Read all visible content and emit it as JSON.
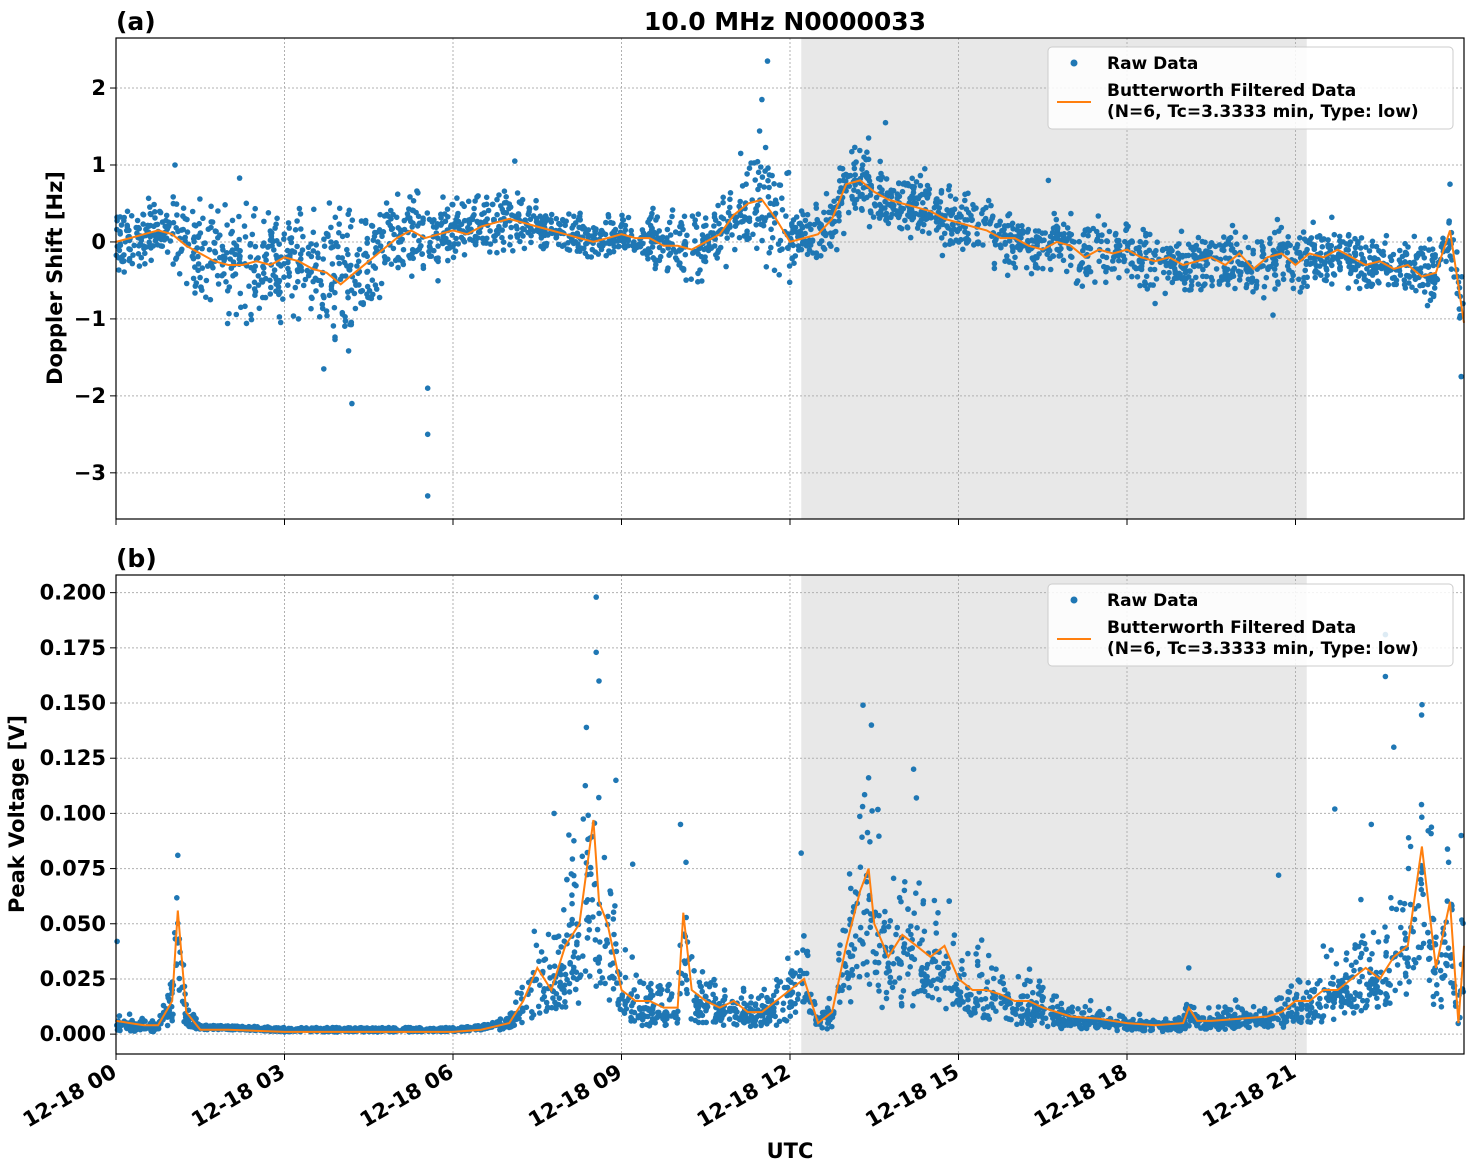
{
  "title": "10.0 MHz N0000033",
  "xlabel": "UTC",
  "x_ticks": [
    "12-18 00",
    "12-18 03",
    "12-18 06",
    "12-18 09",
    "12-18 12",
    "12-18 15",
    "12-18 18",
    "12-18 21"
  ],
  "legend": {
    "raw": "Raw Data",
    "filtered_line1": "Butterworth Filtered Data",
    "filtered_line2": "(N=6, Tc=3.3333 min, Type: low)"
  },
  "colors": {
    "raw": "#1f77b4",
    "filtered": "#ff7f0e",
    "shade": "#e8e8e8",
    "grid": "#b0b0b0"
  },
  "chart_data": [
    {
      "panel": "(a)",
      "type": "scatter",
      "title": "10.0 MHz N0000033",
      "ylabel": "Doppler Shift [Hz]",
      "xlim_hours": [
        0,
        24
      ],
      "ylim": [
        -3.6,
        2.65
      ],
      "y_ticks": [
        "2",
        "1",
        "0",
        "−1",
        "−2",
        "−3"
      ],
      "y_tick_values": [
        2,
        1,
        0,
        -1,
        -2,
        -3
      ],
      "grid": true,
      "legend_position": "top-right",
      "shaded_interval_hours": [
        12.2,
        21.2
      ],
      "series": [
        {
          "name": "Butterworth Filtered Data",
          "x_hours": [
            0,
            0.25,
            0.5,
            0.75,
            1.0,
            1.25,
            1.5,
            1.75,
            2.0,
            2.25,
            2.5,
            2.75,
            3.0,
            3.25,
            3.5,
            3.75,
            4.0,
            4.25,
            4.5,
            4.75,
            5.0,
            5.25,
            5.5,
            5.75,
            6.0,
            6.25,
            6.5,
            6.75,
            7.0,
            7.25,
            7.5,
            7.75,
            8.0,
            8.25,
            8.5,
            8.75,
            9.0,
            9.25,
            9.5,
            9.75,
            10.0,
            10.25,
            10.5,
            10.75,
            11.0,
            11.25,
            11.5,
            11.75,
            12.0,
            12.25,
            12.5,
            12.75,
            13.0,
            13.25,
            13.5,
            13.75,
            14.0,
            14.25,
            14.5,
            14.75,
            15.0,
            15.25,
            15.5,
            15.75,
            16.0,
            16.25,
            16.5,
            16.75,
            17.0,
            17.25,
            17.5,
            17.75,
            18.0,
            18.25,
            18.5,
            18.75,
            19.0,
            19.25,
            19.5,
            19.75,
            20.0,
            20.25,
            20.5,
            20.75,
            21.0,
            21.25,
            21.5,
            21.75,
            22.0,
            22.25,
            22.5,
            22.75,
            23.0,
            23.25,
            23.5,
            23.75,
            24.0
          ],
          "y": [
            0.0,
            0.05,
            0.1,
            0.15,
            0.1,
            -0.05,
            -0.15,
            -0.25,
            -0.3,
            -0.3,
            -0.25,
            -0.3,
            -0.2,
            -0.25,
            -0.35,
            -0.4,
            -0.55,
            -0.4,
            -0.25,
            -0.1,
            0.05,
            0.15,
            0.05,
            0.1,
            0.15,
            0.1,
            0.2,
            0.25,
            0.3,
            0.25,
            0.2,
            0.15,
            0.1,
            0.05,
            0.0,
            0.05,
            0.1,
            0.05,
            0.05,
            -0.05,
            -0.05,
            -0.1,
            0.0,
            0.1,
            0.35,
            0.5,
            0.55,
            0.3,
            0.0,
            0.05,
            0.1,
            0.3,
            0.75,
            0.8,
            0.65,
            0.55,
            0.5,
            0.45,
            0.4,
            0.3,
            0.25,
            0.2,
            0.15,
            0.05,
            0.05,
            -0.05,
            -0.1,
            0.0,
            -0.05,
            -0.2,
            -0.1,
            -0.15,
            -0.1,
            -0.2,
            -0.25,
            -0.2,
            -0.3,
            -0.25,
            -0.2,
            -0.3,
            -0.15,
            -0.35,
            -0.2,
            -0.15,
            -0.3,
            -0.15,
            -0.2,
            -0.1,
            -0.2,
            -0.3,
            -0.25,
            -0.35,
            -0.3,
            -0.45,
            -0.4,
            0.15,
            -1.05
          ]
        },
        {
          "name": "Raw Data",
          "scatter_spread": [
            0.35,
            0.35,
            0.3,
            0.25,
            0.55,
            0.6,
            0.6,
            0.55,
            0.55,
            0.55,
            0.55,
            0.55,
            0.55,
            0.55,
            0.6,
            0.7,
            0.7,
            0.6,
            0.55,
            0.5,
            0.45,
            0.4,
            0.4,
            0.35,
            0.3,
            0.3,
            0.3,
            0.3,
            0.3,
            0.25,
            0.2,
            0.2,
            0.2,
            0.2,
            0.2,
            0.2,
            0.2,
            0.25,
            0.3,
            0.35,
            0.35,
            0.35,
            0.3,
            0.35,
            0.45,
            0.6,
            0.7,
            0.55,
            0.3,
            0.25,
            0.25,
            0.35,
            0.4,
            0.35,
            0.3,
            0.3,
            0.3,
            0.3,
            0.3,
            0.3,
            0.3,
            0.3,
            0.3,
            0.3,
            0.3,
            0.3,
            0.3,
            0.3,
            0.3,
            0.3,
            0.3,
            0.3,
            0.3,
            0.3,
            0.3,
            0.3,
            0.3,
            0.3,
            0.3,
            0.3,
            0.3,
            0.3,
            0.3,
            0.3,
            0.3,
            0.3,
            0.3,
            0.3,
            0.3,
            0.3,
            0.3,
            0.3,
            0.3,
            0.3,
            0.3,
            0.35,
            0.5
          ],
          "outliers": [
            [
              1.05,
              1.0
            ],
            [
              2.2,
              0.83
            ],
            [
              3.7,
              -1.65
            ],
            [
              4.2,
              -2.1
            ],
            [
              5.55,
              -3.3
            ],
            [
              5.55,
              -2.5
            ],
            [
              5.55,
              -1.9
            ],
            [
              7.1,
              1.05
            ],
            [
              11.6,
              2.35
            ],
            [
              11.5,
              1.85
            ],
            [
              13.7,
              1.55
            ],
            [
              13.4,
              1.35
            ],
            [
              14.4,
              0.95
            ],
            [
              16.6,
              0.8
            ],
            [
              18.5,
              -0.8
            ],
            [
              20.6,
              -0.95
            ],
            [
              23.75,
              0.75
            ],
            [
              23.95,
              -1.75
            ]
          ]
        }
      ]
    },
    {
      "panel": "(b)",
      "type": "scatter",
      "ylabel": "Peak Voltage [V]",
      "xlim_hours": [
        0,
        24
      ],
      "ylim": [
        -0.009,
        0.208
      ],
      "y_ticks": [
        "0.200",
        "0.175",
        "0.150",
        "0.125",
        "0.100",
        "0.075",
        "0.050",
        "0.025",
        "0.000"
      ],
      "y_tick_values": [
        0.2,
        0.175,
        0.15,
        0.125,
        0.1,
        0.075,
        0.05,
        0.025,
        0.0
      ],
      "grid": true,
      "legend_position": "top-right",
      "shaded_interval_hours": [
        12.2,
        21.2
      ],
      "series": [
        {
          "name": "Butterworth Filtered Data",
          "x_hours": [
            0,
            0.25,
            0.5,
            0.75,
            1.0,
            1.1,
            1.25,
            1.5,
            2.0,
            3.0,
            4.0,
            5.0,
            6.0,
            6.5,
            7.0,
            7.25,
            7.5,
            7.75,
            8.0,
            8.25,
            8.5,
            8.6,
            8.75,
            9.0,
            9.25,
            9.5,
            9.75,
            10.0,
            10.1,
            10.25,
            10.5,
            10.75,
            11.0,
            11.25,
            11.5,
            11.75,
            12.0,
            12.25,
            12.5,
            12.75,
            13.0,
            13.25,
            13.4,
            13.5,
            13.75,
            14.0,
            14.25,
            14.5,
            14.75,
            15.0,
            15.25,
            15.5,
            15.75,
            16.0,
            16.25,
            16.5,
            16.75,
            17.0,
            17.5,
            18.0,
            18.5,
            19.0,
            19.1,
            19.25,
            19.5,
            20.0,
            20.5,
            20.75,
            21.0,
            21.25,
            21.5,
            21.75,
            22.0,
            22.25,
            22.5,
            22.75,
            23.0,
            23.25,
            23.5,
            23.75,
            23.9,
            24.0
          ],
          "y": [
            0.006,
            0.005,
            0.004,
            0.004,
            0.015,
            0.056,
            0.01,
            0.002,
            0.002,
            0.001,
            0.001,
            0.001,
            0.001,
            0.002,
            0.005,
            0.015,
            0.03,
            0.02,
            0.04,
            0.05,
            0.097,
            0.06,
            0.05,
            0.02,
            0.015,
            0.015,
            0.012,
            0.012,
            0.055,
            0.02,
            0.015,
            0.012,
            0.015,
            0.01,
            0.01,
            0.015,
            0.02,
            0.025,
            0.005,
            0.01,
            0.04,
            0.065,
            0.075,
            0.05,
            0.035,
            0.045,
            0.04,
            0.035,
            0.04,
            0.025,
            0.02,
            0.02,
            0.018,
            0.015,
            0.015,
            0.012,
            0.01,
            0.008,
            0.007,
            0.005,
            0.004,
            0.005,
            0.012,
            0.006,
            0.006,
            0.007,
            0.008,
            0.01,
            0.015,
            0.015,
            0.02,
            0.02,
            0.025,
            0.03,
            0.025,
            0.035,
            0.04,
            0.085,
            0.03,
            0.06,
            0.005,
            0.04
          ]
        },
        {
          "name": "Raw Data",
          "outliers": [
            [
              0.02,
              0.042
            ],
            [
              1.1,
              0.081
            ],
            [
              7.8,
              0.1
            ],
            [
              8.55,
              0.198
            ],
            [
              8.55,
              0.173
            ],
            [
              8.6,
              0.16
            ],
            [
              8.9,
              0.115
            ],
            [
              9.2,
              0.077
            ],
            [
              10.05,
              0.095
            ],
            [
              12.2,
              0.082
            ],
            [
              13.3,
              0.149
            ],
            [
              13.45,
              0.14
            ],
            [
              14.2,
              0.12
            ],
            [
              14.25,
              0.107
            ],
            [
              19.1,
              0.03
            ],
            [
              20.7,
              0.072
            ],
            [
              21.7,
              0.102
            ],
            [
              22.35,
              0.095
            ],
            [
              22.6,
              0.181
            ],
            [
              22.6,
              0.162
            ],
            [
              22.75,
              0.13
            ],
            [
              23.05,
              0.085
            ],
            [
              23.95,
              0.09
            ]
          ]
        }
      ]
    }
  ]
}
